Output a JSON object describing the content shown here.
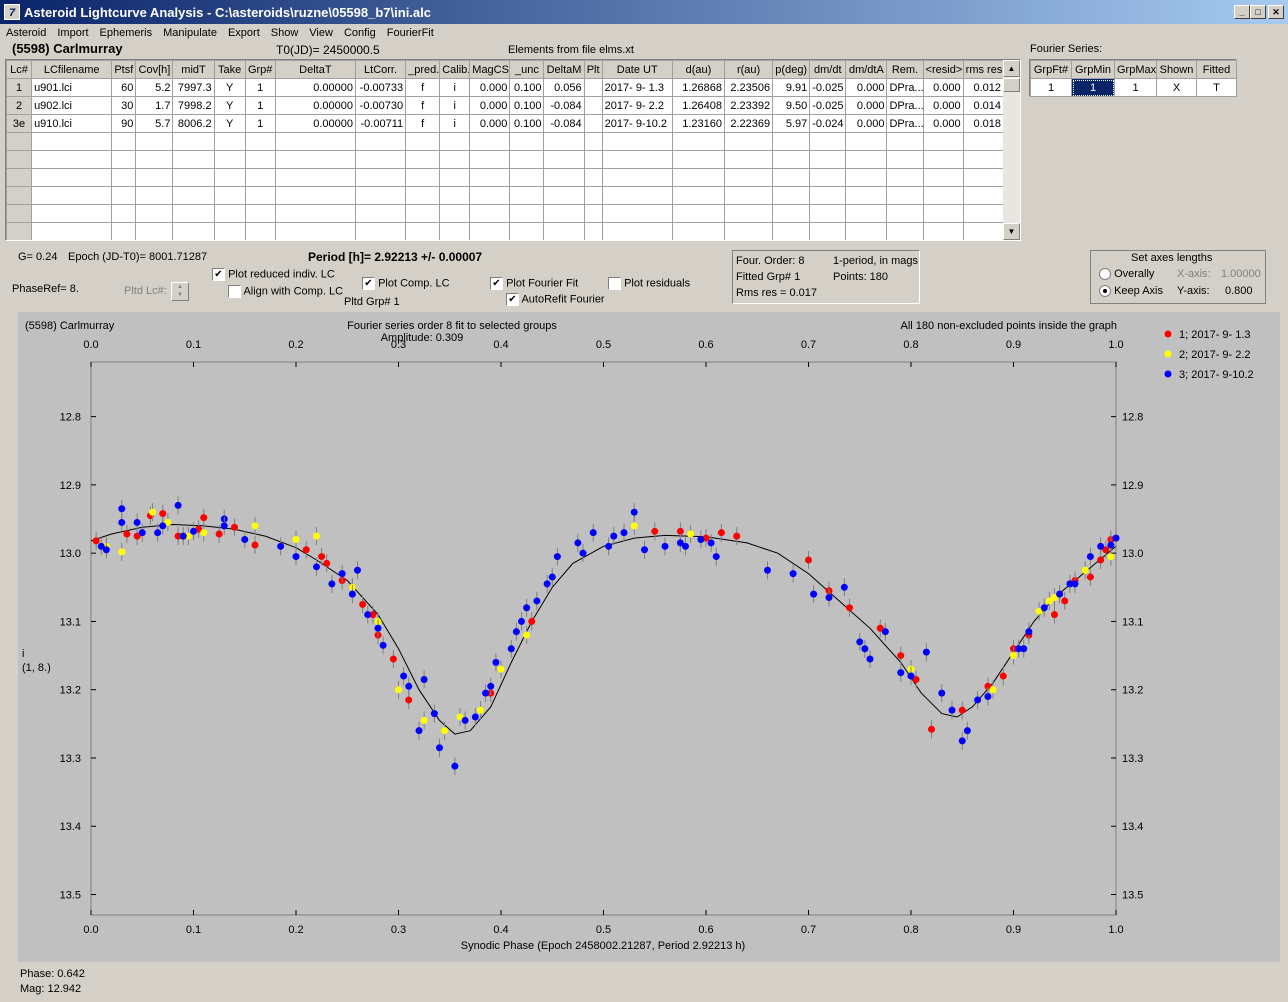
{
  "window": {
    "title": "Asteroid Lightcurve Analysis - C:\\asteroids\\ruzne\\05598_b7\\ini.alc",
    "icon_letter": "7"
  },
  "menu": [
    "Asteroid",
    "Import",
    "Ephemeris",
    "Manipulate",
    "Export",
    "Show",
    "View",
    "Config",
    "FourierFit"
  ],
  "header": {
    "asteroid": "(5598) Carlmurray",
    "t0": "T0(JD)= 2450000.5",
    "elements": "Elements from file elms.xt"
  },
  "lc_table": {
    "columns": [
      "Lc#",
      "LCfilename",
      "Ptsf",
      "Cov[h]",
      "midT",
      "Take",
      "Grp#",
      "DeltaT",
      "LtCorr.",
      "_pred.",
      "Calib.",
      "MagCS",
      "_unc",
      "DeltaM",
      "Plt",
      "Date UT",
      "d(au)",
      "r(au)",
      "p(deg)",
      "dm/dt",
      "dm/dtA",
      "Rem.",
      "<resid>",
      "rms res"
    ],
    "rows": [
      [
        "1",
        "u901.lci",
        "60",
        "5.2",
        "7997.3",
        "Y",
        "1",
        "0.00000",
        "-0.00733",
        "f",
        "i",
        "0.000",
        "0.100",
        "0.056",
        "",
        "2017- 9- 1.3",
        "1.26868",
        "2.23506",
        "9.91",
        "-0.025",
        "0.000",
        "DPra...",
        "0.000",
        "0.012"
      ],
      [
        "2",
        "u902.lci",
        "30",
        "1.7",
        "7998.2",
        "Y",
        "1",
        "0.00000",
        "-0.00730",
        "f",
        "i",
        "0.000",
        "0.100",
        "-0.084",
        "",
        "2017- 9- 2.2",
        "1.26408",
        "2.23392",
        "9.50",
        "-0.025",
        "0.000",
        "DPra...",
        "0.000",
        "0.014"
      ],
      [
        "3e",
        "u910.lci",
        "90",
        "5.7",
        "8006.2",
        "Y",
        "1",
        "0.00000",
        "-0.00711",
        "f",
        "i",
        "0.000",
        "0.100",
        "-0.084",
        "",
        "2017- 9-10.2",
        "1.23160",
        "2.22369",
        "5.97",
        "-0.024",
        "0.000",
        "DPra...",
        "0.000",
        "0.018"
      ]
    ],
    "empty_rows": 6
  },
  "fourier_series": {
    "label": "Fourier Series:",
    "columns": [
      "GrpFt#",
      "GrpMin",
      "GrpMax",
      "Shown",
      "Fitted"
    ],
    "row": [
      "1",
      "1",
      "1",
      "X",
      "T"
    ]
  },
  "info": {
    "g": "G= 0.24",
    "epoch": "Epoch (JD-T0)= 8001.71287",
    "period": "Period [h]= 2.92213 +/- 0.00007",
    "phaseref": "PhaseRef= 8.",
    "pltd_lc": "Pltd Lc#:",
    "pltd_grp": "Pltd Grp#  1"
  },
  "checkboxes": {
    "plot_reduced": {
      "label": "Plot reduced indiv. LC",
      "checked": "✔"
    },
    "align_comp": {
      "label": "Align with Comp. LC",
      "checked": ""
    },
    "plot_comp": {
      "label": "Plot Comp. LC",
      "checked": "✔"
    },
    "plot_fourier": {
      "label": "Plot Fourier Fit",
      "checked": "✔"
    },
    "autorefit": {
      "label": "AutoRefit Fourier",
      "checked": "✔"
    },
    "plot_residuals": {
      "label": "Plot residuals",
      "checked": ""
    }
  },
  "fourier_info": {
    "order": "Four. Order:  8",
    "fitted": "Fitted Grp# 1",
    "rms": "Rms res     = 0.017",
    "mode": "1-period, in mags",
    "points": "Points: 180"
  },
  "axes_box": {
    "title": "Set axes lengths",
    "overally": "Overally",
    "keep": "Keep Axis",
    "xaxis_label": "X-axis:",
    "xaxis_val": "1.00000",
    "yaxis_label": "Y-axis:",
    "yaxis_val": "0.800"
  },
  "status": {
    "phase": "Phase:  0.642",
    "mag": "Mag:    12.942"
  },
  "chart_data": {
    "type": "scatter",
    "title_left": "(5598) Carlmurray",
    "title_center": "Fourier series order 8 fit to selected groups",
    "amplitude": "Amplitude: 0.309",
    "title_right": "All 180 non-excluded points inside the graph",
    "xlabel": "Synodic Phase (Epoch 2458002.21287, Period 2.92213 h)",
    "ylabel": "i",
    "ylabel2": "(1, 8.)",
    "xlim": [
      0,
      1
    ],
    "ylim": [
      13.55,
      12.75
    ],
    "xticks": [
      0.0,
      0.1,
      0.2,
      0.3,
      0.4,
      0.5,
      0.6,
      0.7,
      0.8,
      0.9,
      1.0
    ],
    "xtick_labels": [
      "0.0",
      "0.1",
      "0.2",
      "0.3",
      "0.4",
      "0.5",
      "0.6",
      "0.7",
      "0.8",
      "0.9",
      "1.0"
    ],
    "yticks": [
      12.8,
      12.9,
      13.0,
      13.1,
      13.2,
      13.3,
      13.4,
      13.5
    ],
    "ytick_labels": [
      "12.8",
      "12.9",
      "13.0",
      "13.1",
      "13.2",
      "13.3",
      "13.4",
      "13.5"
    ],
    "fit_curve": [
      [
        0.0,
        12.982
      ],
      [
        0.02,
        12.972
      ],
      [
        0.05,
        12.962
      ],
      [
        0.08,
        12.958
      ],
      [
        0.11,
        12.96
      ],
      [
        0.14,
        12.965
      ],
      [
        0.17,
        12.975
      ],
      [
        0.2,
        12.992
      ],
      [
        0.22,
        13.01
      ],
      [
        0.25,
        13.04
      ],
      [
        0.28,
        13.09
      ],
      [
        0.3,
        13.14
      ],
      [
        0.32,
        13.2
      ],
      [
        0.34,
        13.245
      ],
      [
        0.355,
        13.265
      ],
      [
        0.37,
        13.26
      ],
      [
        0.39,
        13.225
      ],
      [
        0.41,
        13.16
      ],
      [
        0.43,
        13.1
      ],
      [
        0.45,
        13.05
      ],
      [
        0.47,
        13.015
      ],
      [
        0.5,
        12.99
      ],
      [
        0.53,
        12.978
      ],
      [
        0.56,
        12.974
      ],
      [
        0.6,
        12.976
      ],
      [
        0.64,
        12.985
      ],
      [
        0.67,
        13.0
      ],
      [
        0.7,
        13.03
      ],
      [
        0.73,
        13.07
      ],
      [
        0.76,
        13.11
      ],
      [
        0.79,
        13.16
      ],
      [
        0.81,
        13.205
      ],
      [
        0.83,
        13.235
      ],
      [
        0.845,
        13.24
      ],
      [
        0.86,
        13.225
      ],
      [
        0.88,
        13.19
      ],
      [
        0.9,
        13.145
      ],
      [
        0.92,
        13.1
      ],
      [
        0.94,
        13.065
      ],
      [
        0.96,
        13.04
      ],
      [
        0.98,
        13.015
      ],
      [
        1.0,
        12.99
      ]
    ],
    "series": [
      {
        "name": "1; 2017- 9- 1.3",
        "color": "#ff0000",
        "points": [
          [
            0.005,
            12.982
          ],
          [
            0.035,
            12.972
          ],
          [
            0.045,
            12.975
          ],
          [
            0.058,
            12.945
          ],
          [
            0.07,
            12.942
          ],
          [
            0.085,
            12.975
          ],
          [
            0.105,
            12.965
          ],
          [
            0.11,
            12.948
          ],
          [
            0.125,
            12.972
          ],
          [
            0.14,
            12.962
          ],
          [
            0.16,
            12.988
          ],
          [
            0.21,
            12.995
          ],
          [
            0.225,
            13.005
          ],
          [
            0.23,
            13.015
          ],
          [
            0.245,
            13.04
          ],
          [
            0.255,
            13.05
          ],
          [
            0.265,
            13.075
          ],
          [
            0.275,
            13.09
          ],
          [
            0.28,
            13.12
          ],
          [
            0.295,
            13.155
          ],
          [
            0.31,
            13.215
          ],
          [
            0.39,
            13.205
          ],
          [
            0.43,
            13.1
          ],
          [
            0.55,
            12.968
          ],
          [
            0.575,
            12.968
          ],
          [
            0.6,
            12.978
          ],
          [
            0.615,
            12.97
          ],
          [
            0.63,
            12.975
          ],
          [
            0.7,
            13.01
          ],
          [
            0.72,
            13.055
          ],
          [
            0.74,
            13.08
          ],
          [
            0.77,
            13.11
          ],
          [
            0.79,
            13.15
          ],
          [
            0.805,
            13.185
          ],
          [
            0.82,
            13.258
          ],
          [
            0.85,
            13.23
          ],
          [
            0.875,
            13.195
          ],
          [
            0.89,
            13.18
          ],
          [
            0.9,
            13.14
          ],
          [
            0.915,
            13.12
          ],
          [
            0.94,
            13.09
          ],
          [
            0.95,
            13.07
          ],
          [
            0.96,
            13.04
          ],
          [
            0.975,
            13.035
          ],
          [
            0.985,
            13.01
          ],
          [
            0.99,
            12.995
          ],
          [
            0.995,
            12.98
          ]
        ]
      },
      {
        "name": "2; 2017- 9- 2.2",
        "color": "#ffff00",
        "points": [
          [
            0.015,
            12.99
          ],
          [
            0.03,
            12.998
          ],
          [
            0.06,
            12.94
          ],
          [
            0.075,
            12.955
          ],
          [
            0.095,
            12.975
          ],
          [
            0.11,
            12.97
          ],
          [
            0.16,
            12.96
          ],
          [
            0.2,
            12.98
          ],
          [
            0.22,
            12.975
          ],
          [
            0.255,
            13.05
          ],
          [
            0.28,
            13.1
          ],
          [
            0.3,
            13.2
          ],
          [
            0.325,
            13.245
          ],
          [
            0.345,
            13.26
          ],
          [
            0.36,
            13.24
          ],
          [
            0.38,
            13.23
          ],
          [
            0.4,
            13.17
          ],
          [
            0.425,
            13.12
          ],
          [
            0.53,
            12.96
          ],
          [
            0.585,
            12.972
          ],
          [
            0.8,
            13.17
          ],
          [
            0.88,
            13.2
          ],
          [
            0.9,
            13.15
          ],
          [
            0.925,
            13.085
          ],
          [
            0.935,
            13.07
          ],
          [
            0.94,
            13.065
          ],
          [
            0.97,
            13.025
          ],
          [
            0.995,
            13.005
          ]
        ]
      },
      {
        "name": "3; 2017- 9-10.2",
        "color": "#0000ff",
        "points": [
          [
            0.01,
            12.99
          ],
          [
            0.015,
            12.995
          ],
          [
            0.03,
            12.955
          ],
          [
            0.03,
            12.935
          ],
          [
            0.045,
            12.955
          ],
          [
            0.05,
            12.97
          ],
          [
            0.065,
            12.97
          ],
          [
            0.07,
            12.96
          ],
          [
            0.085,
            12.93
          ],
          [
            0.09,
            12.975
          ],
          [
            0.1,
            12.968
          ],
          [
            0.13,
            12.95
          ],
          [
            0.13,
            12.96
          ],
          [
            0.15,
            12.98
          ],
          [
            0.185,
            12.99
          ],
          [
            0.2,
            13.005
          ],
          [
            0.22,
            13.02
          ],
          [
            0.235,
            13.045
          ],
          [
            0.245,
            13.03
          ],
          [
            0.255,
            13.06
          ],
          [
            0.26,
            13.025
          ],
          [
            0.27,
            13.09
          ],
          [
            0.28,
            13.11
          ],
          [
            0.285,
            13.135
          ],
          [
            0.305,
            13.18
          ],
          [
            0.31,
            13.195
          ],
          [
            0.32,
            13.26
          ],
          [
            0.325,
            13.185
          ],
          [
            0.335,
            13.235
          ],
          [
            0.34,
            13.285
          ],
          [
            0.355,
            13.312
          ],
          [
            0.365,
            13.245
          ],
          [
            0.375,
            13.24
          ],
          [
            0.385,
            13.205
          ],
          [
            0.39,
            13.195
          ],
          [
            0.395,
            13.16
          ],
          [
            0.41,
            13.14
          ],
          [
            0.415,
            13.115
          ],
          [
            0.42,
            13.1
          ],
          [
            0.425,
            13.08
          ],
          [
            0.435,
            13.07
          ],
          [
            0.445,
            13.045
          ],
          [
            0.45,
            13.035
          ],
          [
            0.455,
            13.005
          ],
          [
            0.475,
            12.985
          ],
          [
            0.48,
            13.0
          ],
          [
            0.49,
            12.97
          ],
          [
            0.505,
            12.99
          ],
          [
            0.51,
            12.975
          ],
          [
            0.52,
            12.97
          ],
          [
            0.53,
            12.94
          ],
          [
            0.54,
            12.995
          ],
          [
            0.56,
            12.99
          ],
          [
            0.575,
            12.985
          ],
          [
            0.58,
            12.99
          ],
          [
            0.595,
            12.98
          ],
          [
            0.605,
            12.985
          ],
          [
            0.61,
            13.005
          ],
          [
            0.66,
            13.025
          ],
          [
            0.685,
            13.03
          ],
          [
            0.705,
            13.06
          ],
          [
            0.72,
            13.065
          ],
          [
            0.735,
            13.05
          ],
          [
            0.75,
            13.13
          ],
          [
            0.755,
            13.14
          ],
          [
            0.76,
            13.155
          ],
          [
            0.775,
            13.115
          ],
          [
            0.79,
            13.175
          ],
          [
            0.8,
            13.18
          ],
          [
            0.815,
            13.145
          ],
          [
            0.83,
            13.205
          ],
          [
            0.84,
            13.23
          ],
          [
            0.85,
            13.275
          ],
          [
            0.855,
            13.26
          ],
          [
            0.865,
            13.215
          ],
          [
            0.875,
            13.21
          ],
          [
            0.905,
            13.14
          ],
          [
            0.91,
            13.14
          ],
          [
            0.915,
            13.115
          ],
          [
            0.93,
            13.08
          ],
          [
            0.945,
            13.06
          ],
          [
            0.955,
            13.045
          ],
          [
            0.96,
            13.045
          ],
          [
            0.975,
            13.005
          ],
          [
            0.985,
            12.99
          ],
          [
            0.995,
            12.988
          ],
          [
            1.0,
            12.978
          ]
        ]
      }
    ],
    "legend_position": "top-right"
  }
}
